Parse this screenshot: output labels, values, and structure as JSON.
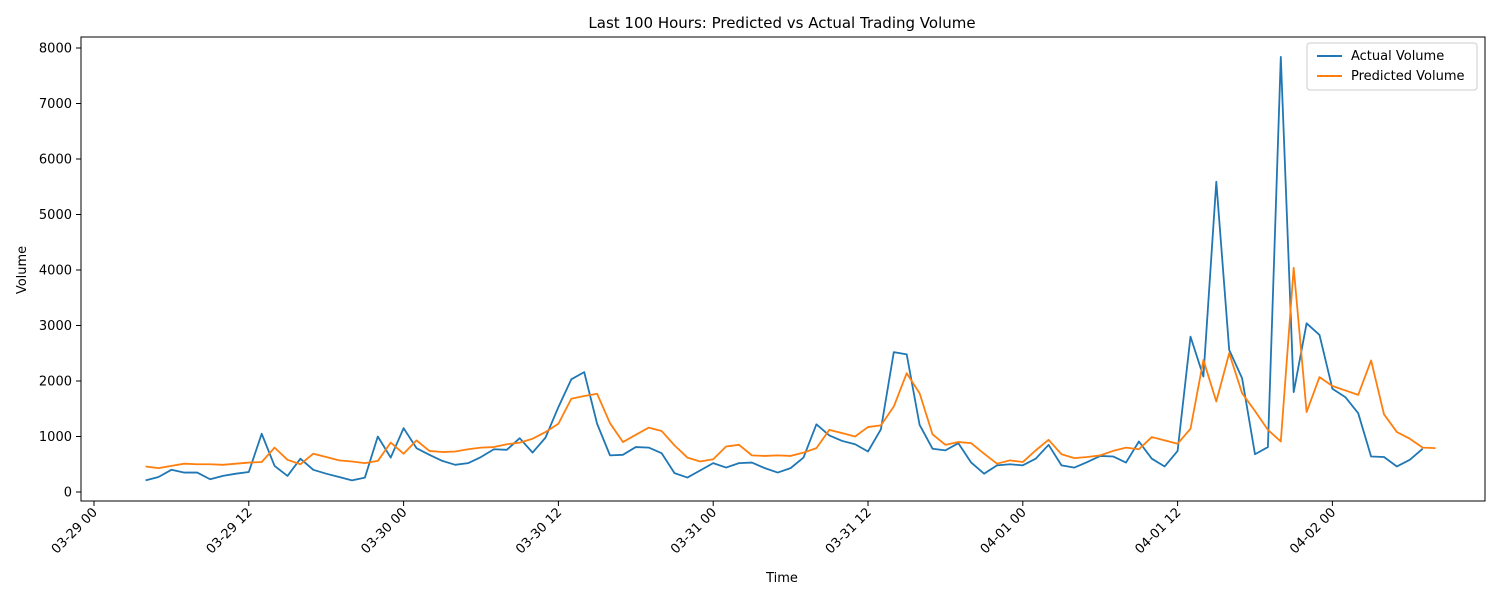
{
  "chart_data": {
    "type": "line",
    "title": "Last 100 Hours: Predicted vs Actual Trading Volume",
    "xlabel": "Time",
    "ylabel": "Volume",
    "x_start": "03-29 04:00",
    "x_step_hours": 1,
    "xlim": [
      "03-29 00:00",
      "04-02 12:00"
    ],
    "ylim": [
      -150,
      8150
    ],
    "x_ticks": [
      {
        "hour": 0,
        "label": "03-29 00"
      },
      {
        "hour": 12,
        "label": "03-29 12"
      },
      {
        "hour": 24,
        "label": "03-30 00"
      },
      {
        "hour": 36,
        "label": "03-30 12"
      },
      {
        "hour": 48,
        "label": "03-31 00"
      },
      {
        "hour": 60,
        "label": "03-31 12"
      },
      {
        "hour": 72,
        "label": "04-01 00"
      },
      {
        "hour": 84,
        "label": "04-01 12"
      },
      {
        "hour": 96,
        "label": "04-02 00"
      }
    ],
    "y_ticks": [
      0,
      1000,
      2000,
      3000,
      4000,
      5000,
      6000,
      7000,
      8000
    ],
    "legend": "top-right",
    "grid": false,
    "series": [
      {
        "name": "Actual Volume",
        "color": "#1f77b4",
        "values": [
          210,
          270,
          400,
          350,
          350,
          230,
          290,
          330,
          360,
          1050,
          470,
          290,
          600,
          400,
          330,
          270,
          210,
          260,
          1000,
          620,
          1150,
          790,
          670,
          560,
          490,
          520,
          630,
          770,
          760,
          970,
          710,
          980,
          1530,
          2030,
          2160,
          1230,
          660,
          670,
          810,
          800,
          700,
          340,
          260,
          390,
          520,
          440,
          520,
          530,
          430,
          350,
          430,
          620,
          1220,
          1020,
          920,
          860,
          730,
          1130,
          2520,
          2480,
          1210,
          780,
          750,
          880,
          530,
          330,
          480,
          500,
          480,
          600,
          850,
          480,
          440,
          540,
          650,
          640,
          530,
          910,
          600,
          460,
          740,
          2800,
          2080,
          5590,
          2560,
          2050,
          680,
          810,
          7840,
          1800,
          3040,
          2830,
          1860,
          1710,
          1420,
          640,
          630,
          460,
          580,
          780
        ]
      },
      {
        "name": "Predicted Volume",
        "color": "#ff7f0e",
        "values": [
          460,
          430,
          470,
          510,
          500,
          500,
          490,
          510,
          530,
          540,
          800,
          580,
          500,
          690,
          630,
          570,
          550,
          520,
          560,
          890,
          690,
          930,
          740,
          720,
          730,
          770,
          800,
          810,
          860,
          890,
          960,
          1080,
          1230,
          1680,
          1730,
          1770,
          1240,
          900,
          1030,
          1160,
          1100,
          840,
          620,
          550,
          590,
          820,
          850,
          660,
          650,
          660,
          650,
          710,
          790,
          1120,
          1060,
          1000,
          1170,
          1200,
          1540,
          2140,
          1780,
          1040,
          850,
          900,
          880,
          690,
          510,
          570,
          540,
          750,
          940,
          680,
          610,
          630,
          660,
          740,
          800,
          770,
          990,
          930,
          870,
          1140,
          2380,
          1630,
          2500,
          1780,
          1460,
          1120,
          910,
          4040,
          1440,
          2070,
          1910,
          1830,
          1750,
          2370,
          1400,
          1080,
          960,
          800,
          790
        ]
      }
    ]
  }
}
